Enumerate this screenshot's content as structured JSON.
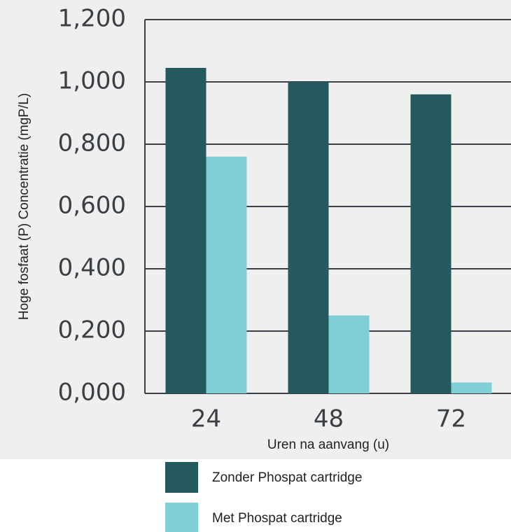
{
  "chart_data": {
    "type": "bar",
    "y_label": "Hoge fosfaat (P) Concentratie (mgP/L)",
    "x_label": "Uren na aanvang (u)",
    "categories": [
      "24",
      "48",
      "72"
    ],
    "series": [
      {
        "name": "Zonder Phospat cartridge",
        "color": "#245a5e",
        "values": [
          1.045,
          1.0,
          0.96
        ]
      },
      {
        "name": "Met Phospat cartridge",
        "color": "#7ed0d6",
        "values": [
          0.76,
          0.25,
          0.035
        ]
      }
    ],
    "ylim": [
      0,
      1.2
    ],
    "yticks": [
      {
        "value": 0,
        "label": "0,000"
      },
      {
        "value": 0.2,
        "label": "0,200"
      },
      {
        "value": 0.4,
        "label": "0,400"
      },
      {
        "value": 0.6,
        "label": "0,600"
      },
      {
        "value": 0.8,
        "label": "0,800"
      },
      {
        "value": 1.0,
        "label": "1,000"
      },
      {
        "value": 1.2,
        "label": "1,200"
      }
    ],
    "grid": true
  }
}
